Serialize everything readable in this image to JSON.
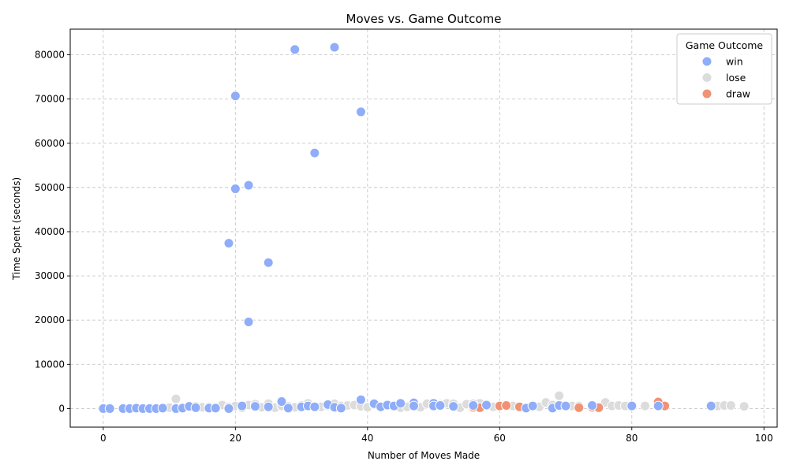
{
  "chart_data": {
    "type": "scatter",
    "title": "Moves vs. Game Outcome",
    "xlabel": "Number of Moves Made",
    "ylabel": "Time Spent (seconds)",
    "xlim": [
      -5,
      102
    ],
    "ylim": [
      -4200,
      85800
    ],
    "xticks": [
      0,
      20,
      40,
      60,
      80,
      100
    ],
    "yticks": [
      0,
      10000,
      20000,
      30000,
      40000,
      50000,
      60000,
      70000,
      80000
    ],
    "grid": true,
    "legend": {
      "title": "Game Outcome",
      "placement": "top-right",
      "entries": [
        "win",
        "lose",
        "draw"
      ]
    },
    "colors": {
      "win": "#8fadf8",
      "lose": "#dcdcdc",
      "draw": "#ef9374"
    },
    "series": [
      {
        "name": "lose",
        "points": [
          [
            10,
            200
          ],
          [
            11,
            2200
          ],
          [
            12,
            300
          ],
          [
            14,
            500
          ],
          [
            15,
            300
          ],
          [
            16,
            400
          ],
          [
            17,
            300
          ],
          [
            18,
            800
          ],
          [
            19,
            400
          ],
          [
            20,
            600
          ],
          [
            21,
            200
          ],
          [
            22,
            800
          ],
          [
            23,
            1000
          ],
          [
            24,
            300
          ],
          [
            25,
            1100
          ],
          [
            26,
            200
          ],
          [
            27,
            600
          ],
          [
            28,
            500
          ],
          [
            29,
            300
          ],
          [
            30,
            700
          ],
          [
            31,
            1200
          ],
          [
            32,
            300
          ],
          [
            33,
            400
          ],
          [
            34,
            600
          ],
          [
            35,
            1100
          ],
          [
            36,
            600
          ],
          [
            37,
            700
          ],
          [
            38,
            800
          ],
          [
            39,
            500
          ],
          [
            40,
            300
          ],
          [
            41,
            900
          ],
          [
            43,
            1000
          ],
          [
            44,
            700
          ],
          [
            45,
            200
          ],
          [
            46,
            400
          ],
          [
            48,
            300
          ],
          [
            49,
            1100
          ],
          [
            50,
            500
          ],
          [
            51,
            1000
          ],
          [
            52,
            1200
          ],
          [
            53,
            1100
          ],
          [
            54,
            200
          ],
          [
            55,
            1000
          ],
          [
            56,
            400
          ],
          [
            57,
            1200
          ],
          [
            58,
            600
          ],
          [
            59,
            400
          ],
          [
            62,
            600
          ],
          [
            66,
            400
          ],
          [
            67,
            1400
          ],
          [
            68,
            800
          ],
          [
            69,
            2900
          ],
          [
            71,
            600
          ],
          [
            72,
            600
          ],
          [
            74,
            300
          ],
          [
            75,
            400
          ],
          [
            76,
            1400
          ],
          [
            77,
            600
          ],
          [
            78,
            700
          ],
          [
            79,
            600
          ],
          [
            82,
            600
          ],
          [
            93,
            600
          ],
          [
            94,
            700
          ],
          [
            95,
            700
          ],
          [
            97,
            500
          ]
        ]
      },
      {
        "name": "draw",
        "points": [
          [
            56,
            300
          ],
          [
            57,
            200
          ],
          [
            60,
            600
          ],
          [
            61,
            700
          ],
          [
            63,
            400
          ],
          [
            72,
            200
          ],
          [
            74,
            300
          ],
          [
            75,
            200
          ],
          [
            84,
            1500
          ],
          [
            85,
            600
          ]
        ]
      },
      {
        "name": "win",
        "points": [
          [
            0,
            0
          ],
          [
            1,
            0
          ],
          [
            3,
            0
          ],
          [
            4,
            0
          ],
          [
            5,
            100
          ],
          [
            6,
            0
          ],
          [
            7,
            0
          ],
          [
            8,
            0
          ],
          [
            9,
            100
          ],
          [
            11,
            0
          ],
          [
            12,
            100
          ],
          [
            13,
            500
          ],
          [
            14,
            200
          ],
          [
            16,
            100
          ],
          [
            17,
            100
          ],
          [
            19,
            0
          ],
          [
            21,
            600
          ],
          [
            23,
            500
          ],
          [
            25,
            400
          ],
          [
            27,
            1600
          ],
          [
            28,
            100
          ],
          [
            30,
            400
          ],
          [
            31,
            600
          ],
          [
            32,
            400
          ],
          [
            34,
            900
          ],
          [
            35,
            300
          ],
          [
            36,
            100
          ],
          [
            39,
            2000
          ],
          [
            41,
            1100
          ],
          [
            42,
            400
          ],
          [
            43,
            800
          ],
          [
            44,
            600
          ],
          [
            45,
            1200
          ],
          [
            47,
            1300
          ],
          [
            47,
            600
          ],
          [
            50,
            1200
          ],
          [
            50,
            600
          ],
          [
            51,
            700
          ],
          [
            53,
            500
          ],
          [
            56,
            1000
          ],
          [
            56,
            700
          ],
          [
            58,
            800
          ],
          [
            64,
            100
          ],
          [
            65,
            600
          ],
          [
            68,
            100
          ],
          [
            69,
            700
          ],
          [
            70,
            600
          ],
          [
            74,
            700
          ],
          [
            80,
            600
          ],
          [
            84,
            600
          ],
          [
            92,
            600
          ],
          [
            29,
            81200
          ],
          [
            35,
            81700
          ],
          [
            20,
            70700
          ],
          [
            39,
            67100
          ],
          [
            32,
            57800
          ],
          [
            22,
            50500
          ],
          [
            20,
            49700
          ],
          [
            19,
            37400
          ],
          [
            25,
            33000
          ],
          [
            22,
            19600
          ]
        ]
      }
    ]
  }
}
